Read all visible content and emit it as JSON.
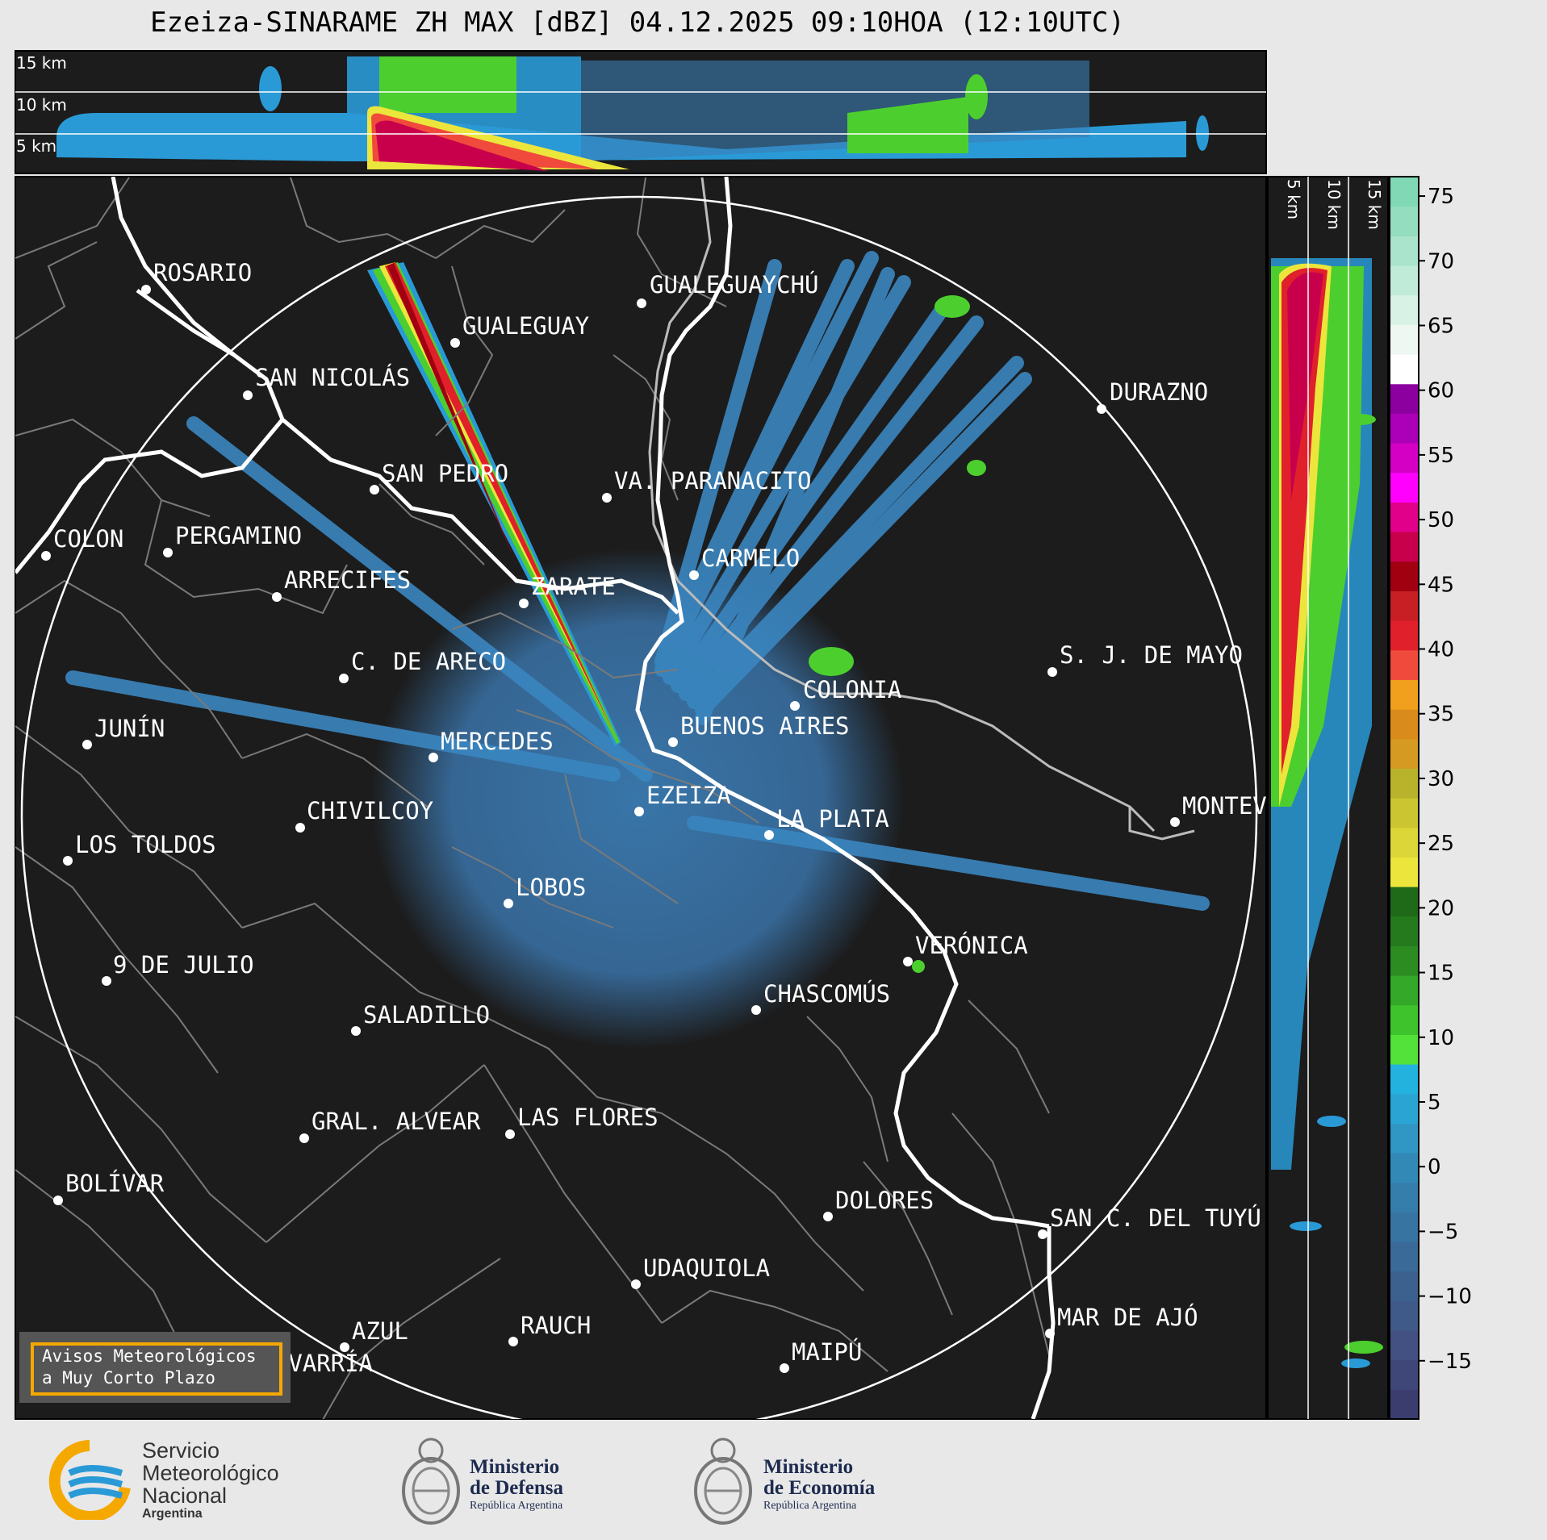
{
  "title": "Ezeiza-SINARAME ZH MAX [dBZ] 04.12.2025 09:10HOA (12:10UTC)",
  "top_profile_labels": [
    "15 km",
    "10 km",
    "5 km"
  ],
  "side_profile_labels": [
    "5 km",
    "10 km",
    "15 km"
  ],
  "colorbar": {
    "ticks": [
      "75",
      "70",
      "65",
      "60",
      "55",
      "50",
      "45",
      "40",
      "35",
      "30",
      "25",
      "20",
      "15",
      "10",
      "5",
      "0",
      "−5",
      "−10",
      "−15"
    ],
    "colors": [
      "#3b3d6e",
      "#3f4778",
      "#435082",
      "#3f5988",
      "#3c618f",
      "#3a6a98",
      "#3774a2",
      "#357eac",
      "#3389b6",
      "#3096c3",
      "#2aa5d3",
      "#23b2dd",
      "#52e23a",
      "#3ec32c",
      "#34a828",
      "#2c8c22",
      "#267a1e",
      "#1f6a19",
      "#ece63c",
      "#dcd638",
      "#cbc531",
      "#b9b32b",
      "#d49a21",
      "#d98c1b",
      "#f0a01c",
      "#f04a3c",
      "#e0202a",
      "#c81f25",
      "#a00010",
      "#c8004c",
      "#e0008a",
      "#ff00ff",
      "#d400c4",
      "#ac00b8",
      "#8c00a0",
      "#ffffff",
      "#eef7f2",
      "#d8f2e6",
      "#c1ebd9",
      "#aae4cc",
      "#94ddbf",
      "#80d8b5"
    ]
  },
  "cities": [
    {
      "name": "ROSARIO"
    },
    {
      "name": "GUALEGUAYCHÚ"
    },
    {
      "name": "GUALEGUAY"
    },
    {
      "name": "SAN NICOLÁS"
    },
    {
      "name": "DURAZNO"
    },
    {
      "name": "SAN PEDRO"
    },
    {
      "name": "VA. PARANACITO"
    },
    {
      "name": "COLON"
    },
    {
      "name": "PERGAMINO"
    },
    {
      "name": "CARMELO"
    },
    {
      "name": "ARRECIFES"
    },
    {
      "name": "ZARATE"
    },
    {
      "name": "C. DE ARECO"
    },
    {
      "name": "S. J. DE MAYO"
    },
    {
      "name": "COLONIA"
    },
    {
      "name": "JUNÍN"
    },
    {
      "name": "BUENOS AIRES"
    },
    {
      "name": "MERCEDES"
    },
    {
      "name": "EZEIZA"
    },
    {
      "name": "MONTEVIDEO"
    },
    {
      "name": "CHIVILCOY"
    },
    {
      "name": "LA PLATA"
    },
    {
      "name": "LOS TOLDOS"
    },
    {
      "name": "LOBOS"
    },
    {
      "name": "VERÓNICA"
    },
    {
      "name": "9 DE JULIO"
    },
    {
      "name": "CHASCOMÚS"
    },
    {
      "name": "SALADILLO"
    },
    {
      "name": "GRAL. ALVEAR"
    },
    {
      "name": "LAS FLORES"
    },
    {
      "name": "BOLÍVAR"
    },
    {
      "name": "DOLORES"
    },
    {
      "name": "SAN C. DEL TUYÚ"
    },
    {
      "name": "UDAQUIOLA"
    },
    {
      "name": "MAR DE AJÓ"
    },
    {
      "name": "AZUL"
    },
    {
      "name": "RAUCH"
    },
    {
      "name": "OLAVARRÍA"
    },
    {
      "name": "MAIPÚ"
    }
  ],
  "alert_box": {
    "line1": "Avisos Meteorológicos",
    "line2": "a Muy Corto Plazo"
  },
  "logos": {
    "smn": {
      "line1": "Servicio",
      "line2": "Meteorológico",
      "line3": "Nacional",
      "line4": "Argentina"
    },
    "defensa": {
      "line1": "Ministerio",
      "line2": "de Defensa",
      "line3": "República Argentina"
    },
    "economia": {
      "line1": "Ministerio",
      "line2": "de Economía",
      "line3": "República Argentina"
    }
  }
}
